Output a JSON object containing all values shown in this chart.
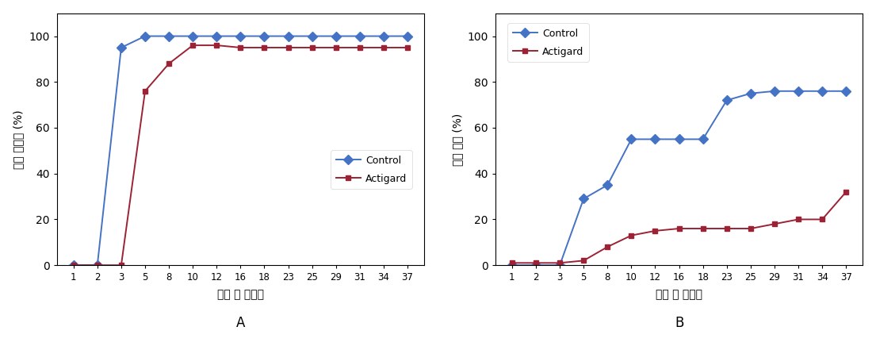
{
  "x_labels": [
    "1",
    "2",
    "3",
    "5",
    "8",
    "10",
    "12",
    "16",
    "18",
    "23",
    "25",
    "29",
    "31",
    "34",
    "37"
  ],
  "x_positions": [
    0,
    1,
    2,
    3,
    4,
    5,
    6,
    7,
    8,
    9,
    10,
    11,
    12,
    13,
    14
  ],
  "chartA_control": [
    0,
    0,
    95,
    100,
    100,
    100,
    100,
    100,
    100,
    100,
    100,
    100,
    100,
    100,
    100
  ],
  "chartA_actigard": [
    0,
    0,
    0,
    76,
    88,
    96,
    96,
    95,
    95,
    95,
    95,
    95,
    95,
    95,
    95
  ],
  "chartB_control": [
    0,
    0,
    0,
    29,
    35,
    55,
    55,
    55,
    55,
    72,
    75,
    76,
    76,
    76,
    76
  ],
  "chartB_actigard": [
    1,
    1,
    1,
    2,
    8,
    13,
    15,
    16,
    16,
    16,
    16,
    18,
    20,
    20,
    32
  ],
  "control_color": "#4472C4",
  "actigard_color": "#9B2335",
  "line_width": 1.4,
  "marker_size_control": 6,
  "marker_size_actigard": 5,
  "ylabel_A": "뱃든 개체수 (%)",
  "ylabel_B": "죽은 개체 (%)",
  "xlabel": "접종 후 경과일",
  "label_A": "A",
  "label_B": "B",
  "legend_control": "Control",
  "legend_actigard": "Actigard",
  "ylim_A": [
    0,
    110
  ],
  "ylim_B": [
    0,
    110
  ],
  "yticks": [
    0,
    20,
    40,
    60,
    80,
    100
  ]
}
